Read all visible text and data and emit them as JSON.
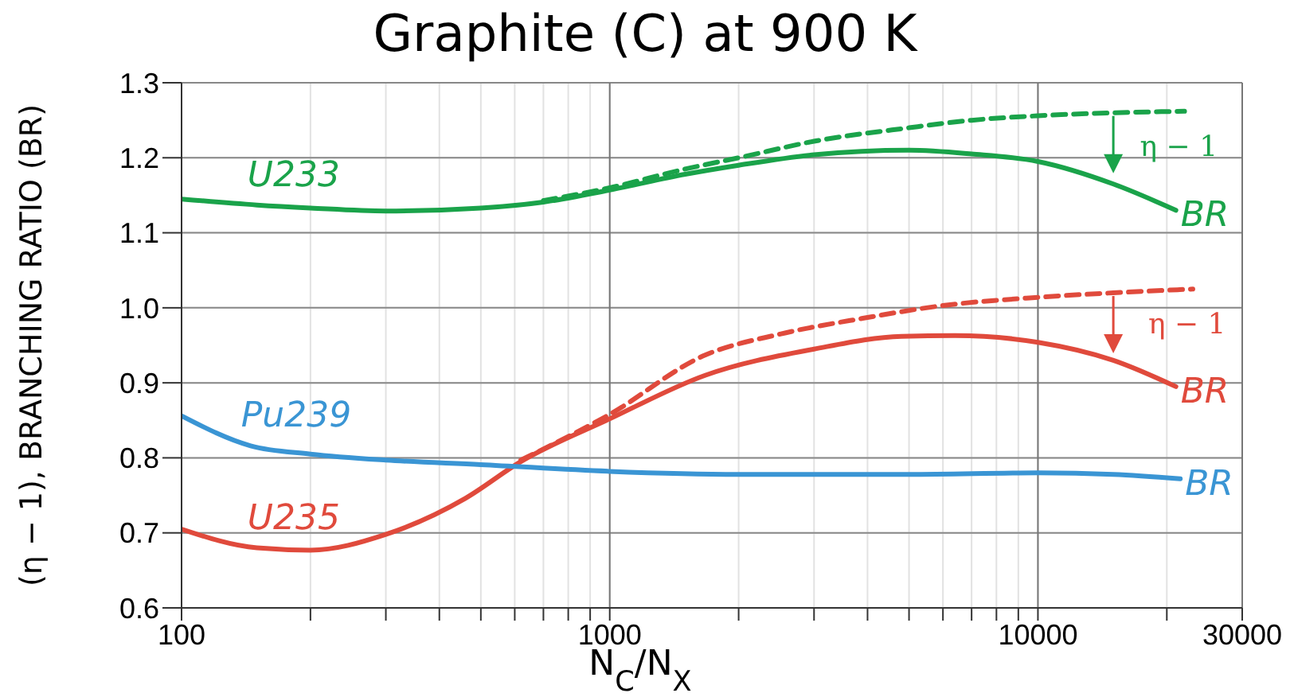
{
  "chart_data": {
    "type": "line",
    "title": "Graphite (C) at 900 K",
    "xlabel": "N$_{C}$/N$_{X}$",
    "ylabel": "(η − 1), BRANCHING RATIO (BR)",
    "log": "x",
    "grid": true,
    "legend": false,
    "marker": "none",
    "xlim": [
      100,
      30000
    ],
    "xticks": [
      100,
      {
        "value": 200,
        "label": null
      },
      {
        "value": 300,
        "label": null
      },
      {
        "value": 400,
        "label": null
      },
      {
        "value": 500,
        "label": null
      },
      {
        "value": 600,
        "label": null
      },
      {
        "value": 700,
        "label": null
      },
      {
        "value": 800,
        "label": null
      },
      {
        "value": 900,
        "label": null
      },
      1000,
      {
        "value": 2000,
        "label": null
      },
      {
        "value": 3000,
        "label": null
      },
      {
        "value": 4000,
        "label": null
      },
      {
        "value": 5000,
        "label": null
      },
      {
        "value": 6000,
        "label": null
      },
      {
        "value": 7000,
        "label": null
      },
      {
        "value": 8000,
        "label": null
      },
      {
        "value": 9000,
        "label": null
      },
      10000,
      {
        "value": 20000,
        "label": null
      },
      30000
    ],
    "ylim": [
      0.6,
      1.3
    ],
    "yticks": [
      0.6,
      0.7,
      0.8,
      0.9,
      {
        "value": 1.0,
        "label": "1.0"
      },
      1.1,
      1.2,
      1.3
    ],
    "series": [
      {
        "name": "U233",
        "color": "#1aa34a",
        "line_style": "solid",
        "x": [
          100,
          150,
          200,
          300,
          500,
          700,
          1000,
          1500,
          2000,
          3000,
          5000,
          7000,
          10000,
          15000,
          21000
        ],
        "values": [
          1.145,
          1.137,
          1.133,
          1.129,
          1.133,
          1.141,
          1.157,
          1.178,
          1.19,
          1.204,
          1.21,
          1.205,
          1.195,
          1.165,
          1.13
        ]
      },
      {
        "color": "#1aa34a",
        "line_style": "dashed",
        "x": [
          700,
          1000,
          1500,
          2000,
          3000,
          5000,
          7000,
          10000,
          15000,
          22000
        ],
        "values": [
          1.143,
          1.16,
          1.185,
          1.2,
          1.222,
          1.24,
          1.25,
          1.256,
          1.26,
          1.262
        ]
      },
      {
        "name": "U235",
        "color": "#e04a3c",
        "line_style": "solid",
        "x": [
          100,
          150,
          200,
          300,
          460,
          620,
          1000,
          1670,
          3000,
          4800,
          6400,
          10000,
          15000,
          21000
        ],
        "values": [
          0.705,
          0.68,
          0.677,
          0.698,
          0.746,
          0.795,
          0.852,
          0.91,
          0.945,
          0.962,
          0.963,
          0.954,
          0.93,
          0.895
        ]
      },
      {
        "color": "#e04a3c",
        "line_style": "dashed",
        "x": [
          620,
          1000,
          1670,
          2500,
          3900,
          6000,
          10000,
          15000,
          23000
        ],
        "values": [
          0.797,
          0.858,
          0.937,
          0.965,
          0.986,
          1.003,
          1.014,
          1.02,
          1.025
        ]
      },
      {
        "name": "Pu239",
        "color": "#3a95d4",
        "line_style": "solid",
        "x": [
          100,
          145,
          200,
          300,
          500,
          1000,
          2000,
          5000,
          10000,
          15000,
          21500
        ],
        "values": [
          0.856,
          0.816,
          0.805,
          0.797,
          0.791,
          0.782,
          0.778,
          0.778,
          0.78,
          0.778,
          0.772
        ]
      }
    ],
    "annotations": [
      {
        "text": "η − 1",
        "x": 22000,
        "y": 1.262
      },
      {
        "text": "η − 1",
        "x": 23000,
        "y": 1.025
      },
      {
        "text": "BR",
        "x": 21000,
        "y": 1.13
      },
      {
        "text": "BR",
        "x": 21000,
        "y": 0.895
      },
      {
        "text": "BR",
        "x": 21500,
        "y": 0.772
      }
    ]
  }
}
